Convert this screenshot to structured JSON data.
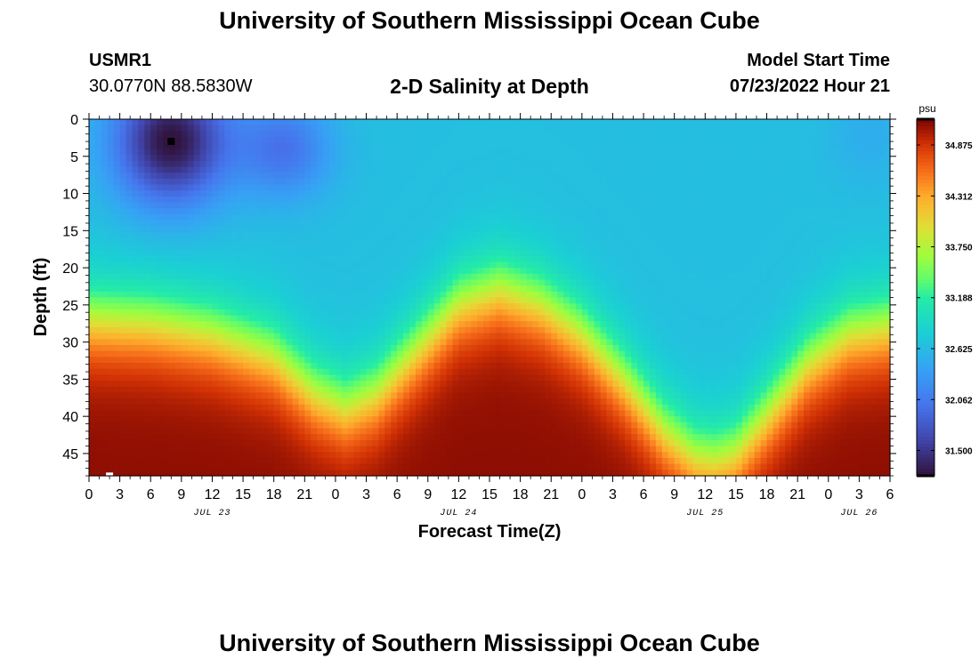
{
  "header": {
    "title": "University of Southern Mississippi Ocean Cube",
    "station_id": "USMR1",
    "station_coords": "30.0770N  88.5830W",
    "plot_title": "2-D Salinity at Depth",
    "model_start_label": "Model Start Time",
    "model_start_value": "07/23/2022 Hour 21"
  },
  "footer": {
    "title": "University of Southern Mississippi Ocean Cube"
  },
  "chart_data": {
    "type": "heatmap",
    "title": "2-D Salinity at Depth",
    "xlabel": "Forecast Time(Z)",
    "ylabel": "Depth (ft)",
    "colorbar_unit": "psu",
    "colorbar_range": [
      31.22,
      35.16
    ],
    "colorbar_ticks": [
      "34.875",
      "34.312",
      "33.750",
      "33.188",
      "32.625",
      "32.062",
      "31.500"
    ],
    "x_range_hours": [
      0,
      78
    ],
    "y_range_ft": [
      0,
      48
    ],
    "x_tick_labels": [
      "0",
      "3",
      "6",
      "9",
      "12",
      "15",
      "18",
      "21",
      "0",
      "3",
      "6",
      "9",
      "12",
      "15",
      "18",
      "21",
      "0",
      "3",
      "6",
      "9",
      "12",
      "15",
      "18",
      "21",
      "0",
      "3",
      "6"
    ],
    "date_labels": [
      {
        "label": "JUL 23",
        "hour": 12
      },
      {
        "label": "JUL 24",
        "hour": 36
      },
      {
        "label": "JUL 25",
        "hour": 60
      },
      {
        "label": "JUL 26",
        "hour": 75
      }
    ],
    "y_tick_labels": [
      "0",
      "5",
      "10",
      "15",
      "20",
      "25",
      "30",
      "35",
      "40",
      "45"
    ],
    "y_tick_values": [
      0,
      5,
      10,
      15,
      20,
      25,
      30,
      35,
      40,
      45
    ],
    "halocline_depth_ft": [
      [
        0,
        27
      ],
      [
        6,
        27.5
      ],
      [
        12,
        29
      ],
      [
        18,
        32
      ],
      [
        22,
        37
      ],
      [
        25,
        39
      ],
      [
        28,
        37
      ],
      [
        32,
        31
      ],
      [
        36,
        25
      ],
      [
        40,
        23
      ],
      [
        44,
        25
      ],
      [
        48,
        29
      ],
      [
        52,
        35
      ],
      [
        56,
        42
      ],
      [
        59,
        45.5
      ],
      [
        61,
        46
      ],
      [
        63,
        45
      ],
      [
        66,
        40
      ],
      [
        70,
        33
      ],
      [
        74,
        29
      ],
      [
        78,
        28
      ]
    ],
    "low_salinity_cores": [
      {
        "hour": 8,
        "depth_ft": 3,
        "value": 31.22
      },
      {
        "hour": 19,
        "depth_ft": 4,
        "value": 32.0
      }
    ],
    "min_marker": {
      "hour": 8,
      "depth_ft": 3
    },
    "max_marker": {
      "hour": 2,
      "depth_ft": 47.8
    },
    "surface_value": 32.65,
    "bottom_value": 35.1
  }
}
